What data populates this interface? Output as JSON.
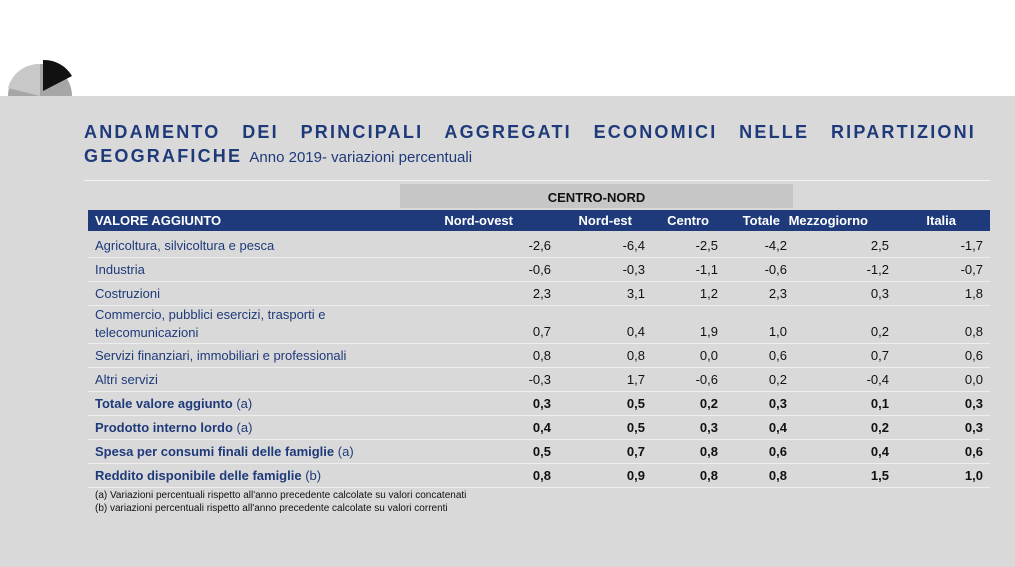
{
  "title": "ANDAMENTO DEI PRINCIPALI AGGREGATI ECONOMICI NELLE RIPARTIZIONI GEOGRAFICHE",
  "subtitle": "Anno 2019- variazioni percentuali",
  "table": {
    "group_header": "CENTRO-NORD",
    "columns": [
      "VALORE AGGIUNTO",
      "Nord-ovest",
      "Nord-est",
      "Centro",
      "Totale",
      "Mezzogiorno",
      "Italia"
    ],
    "rows": [
      {
        "label": "Agricoltura, silvicoltura e pesca",
        "values": [
          "-2,6",
          "-6,4",
          "-2,5",
          "-4,2",
          "2,5",
          "-1,7"
        ]
      },
      {
        "label": "Industria",
        "values": [
          "-0,6",
          "-0,3",
          "-1,1",
          "-0,6",
          "-1,2",
          "-0,7"
        ]
      },
      {
        "label": "Costruzioni",
        "values": [
          "2,3",
          "3,1",
          "1,2",
          "2,3",
          "0,3",
          "1,8"
        ]
      },
      {
        "label": "Commercio, pubblici esercizi, trasporti e telecomunicazioni",
        "values": [
          "0,7",
          "0,4",
          "1,9",
          "1,0",
          "0,2",
          "0,8"
        ]
      },
      {
        "label": "Servizi finanziari, immobiliari e professionali",
        "values": [
          "0,8",
          "0,8",
          "0,0",
          "0,6",
          "0,7",
          "0,6"
        ]
      },
      {
        "label": "Altri servizi",
        "values": [
          "-0,3",
          "1,7",
          "-0,6",
          "0,2",
          "-0,4",
          "0,0"
        ]
      },
      {
        "label": "Totale valore aggiunto",
        "note": "(a)",
        "values": [
          "0,3",
          "0,5",
          "0,2",
          "0,3",
          "0,1",
          "0,3"
        ]
      },
      {
        "label": "Prodotto interno lordo",
        "note": "(a)",
        "values": [
          "0,4",
          "0,5",
          "0,3",
          "0,4",
          "0,2",
          "0,3"
        ]
      },
      {
        "label": "Spesa per consumi finali delle famiglie",
        "note": "(a)",
        "values": [
          "0,5",
          "0,7",
          "0,8",
          "0,6",
          "0,4",
          "0,6"
        ]
      },
      {
        "label": "Reddito disponibile delle famiglie",
        "note": "(b)",
        "values": [
          "0,8",
          "0,9",
          "0,8",
          "0,8",
          "1,5",
          "1,0"
        ]
      }
    ],
    "footnotes": [
      "(a) Variazioni percentuali rispetto all'anno precedente calcolate su valori concatenati",
      "(b) variazioni percentuali rispetto all'anno precedente calcolate su valori correnti"
    ]
  }
}
